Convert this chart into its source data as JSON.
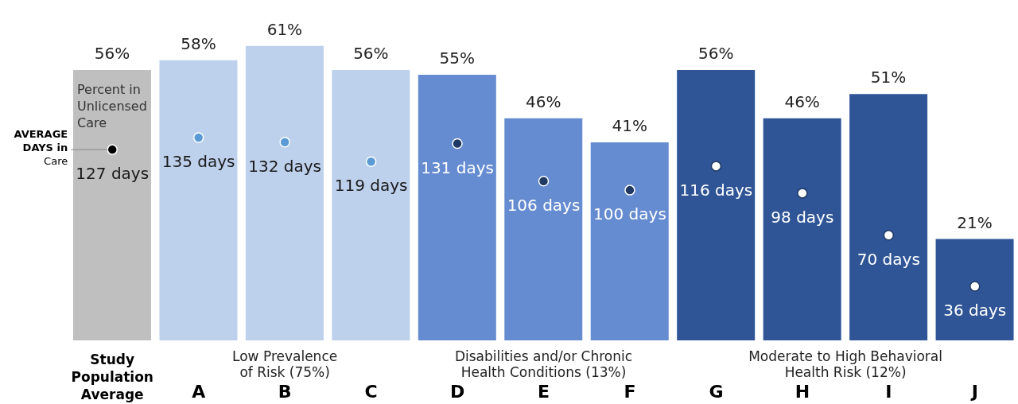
{
  "chart_data": {
    "type": "bar",
    "categories": [
      "Study Population Average",
      "A",
      "B",
      "C",
      "D",
      "E",
      "F",
      "G",
      "H",
      "I",
      "J"
    ],
    "series": [
      {
        "name": "Percent in Unlicensed Care",
        "values": [
          56,
          58,
          61,
          56,
          55,
          46,
          41,
          56,
          46,
          51,
          21
        ],
        "colors": [
          "#bfbfbf",
          "#bdd0ec",
          "#bdd0ec",
          "#bdd0ec",
          "#658bd0",
          "#658bd0",
          "#658bd0",
          "#2f5597",
          "#2f5597",
          "#2f5597",
          "#2f5597"
        ],
        "value_labels": [
          "56%",
          "58%",
          "61%",
          "56%",
          "55%",
          "46%",
          "41%",
          "56%",
          "46%",
          "51%",
          "21%"
        ]
      },
      {
        "name": "AVERAGE DAYS in Care",
        "type": "scatter",
        "axis": "y2",
        "values": [
          127,
          135,
          132,
          119,
          131,
          106,
          100,
          116,
          98,
          70,
          36
        ],
        "colors": [
          "#000000",
          "#5b9bd5",
          "#5b9bd5",
          "#5b9bd5",
          "#1f3864",
          "#1f3864",
          "#1f3864",
          "#ffffff",
          "#ffffff",
          "#ffffff",
          "#ffffff"
        ],
        "value_labels": [
          "127 days",
          "135 days",
          "132 days",
          "119 days",
          "131 days",
          "106 days",
          "100 days",
          "116 days",
          "98 days",
          "70 days",
          "36 days"
        ]
      }
    ],
    "ylim": [
      0,
      70
    ],
    "y2lim": [
      0,
      225
    ],
    "tick_labels": "x",
    "marker": "circle",
    "annotations": [
      "Low Prevalence of Risk (75%)",
      "Disabilities and/or Chronic Health Conditions (13%)",
      "Moderate to High Behavioral Health Risk (12%)"
    ]
  }
}
